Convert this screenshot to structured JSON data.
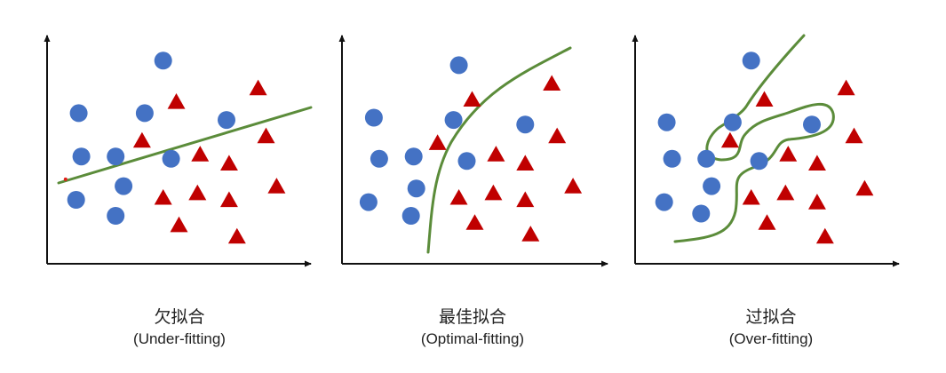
{
  "colors": {
    "circle": "#4472C4",
    "triangle": "#C00000",
    "boundary": "#5B8C3A",
    "axis": "#111111",
    "stray_dot": "#E0201A"
  },
  "panels": [
    {
      "id": "underfit",
      "caption_zh": "欠拟合",
      "caption_en": "(Under-fitting)",
      "fit": "linear",
      "circles": [
        [
          0.44,
          0.89
        ],
        [
          0.12,
          0.66
        ],
        [
          0.37,
          0.66
        ],
        [
          0.68,
          0.63
        ],
        [
          0.13,
          0.47
        ],
        [
          0.26,
          0.47
        ],
        [
          0.47,
          0.46
        ],
        [
          0.29,
          0.34
        ],
        [
          0.11,
          0.28
        ],
        [
          0.26,
          0.21
        ]
      ],
      "triangles": [
        [
          0.49,
          0.71
        ],
        [
          0.8,
          0.77
        ],
        [
          0.36,
          0.54
        ],
        [
          0.83,
          0.56
        ],
        [
          0.58,
          0.48
        ],
        [
          0.69,
          0.44
        ],
        [
          0.87,
          0.34
        ],
        [
          0.57,
          0.31
        ],
        [
          0.44,
          0.29
        ],
        [
          0.69,
          0.28
        ],
        [
          0.5,
          0.17
        ],
        [
          0.72,
          0.12
        ]
      ],
      "stray_dot": [
        0.07,
        0.37
      ]
    },
    {
      "id": "optimal",
      "caption_zh": "最佳拟合",
      "caption_en": "(Optimal-fitting)",
      "fit": "curve",
      "circles": [
        [
          0.44,
          0.87
        ],
        [
          0.12,
          0.64
        ],
        [
          0.42,
          0.63
        ],
        [
          0.69,
          0.61
        ],
        [
          0.14,
          0.46
        ],
        [
          0.27,
          0.47
        ],
        [
          0.47,
          0.45
        ],
        [
          0.28,
          0.33
        ],
        [
          0.1,
          0.27
        ],
        [
          0.26,
          0.21
        ]
      ],
      "triangles": [
        [
          0.49,
          0.72
        ],
        [
          0.79,
          0.79
        ],
        [
          0.36,
          0.53
        ],
        [
          0.81,
          0.56
        ],
        [
          0.58,
          0.48
        ],
        [
          0.69,
          0.44
        ],
        [
          0.87,
          0.34
        ],
        [
          0.57,
          0.31
        ],
        [
          0.44,
          0.29
        ],
        [
          0.69,
          0.28
        ],
        [
          0.5,
          0.18
        ],
        [
          0.71,
          0.13
        ]
      ]
    },
    {
      "id": "overfit",
      "caption_zh": "过拟合",
      "caption_en": "(Over-fitting)",
      "fit": "wiggly",
      "circles": [
        [
          0.44,
          0.89
        ],
        [
          0.12,
          0.62
        ],
        [
          0.37,
          0.62
        ],
        [
          0.67,
          0.61
        ],
        [
          0.14,
          0.46
        ],
        [
          0.27,
          0.46
        ],
        [
          0.47,
          0.45
        ],
        [
          0.29,
          0.34
        ],
        [
          0.11,
          0.27
        ],
        [
          0.25,
          0.22
        ]
      ],
      "triangles": [
        [
          0.49,
          0.72
        ],
        [
          0.8,
          0.77
        ],
        [
          0.36,
          0.54
        ],
        [
          0.83,
          0.56
        ],
        [
          0.58,
          0.48
        ],
        [
          0.69,
          0.44
        ],
        [
          0.87,
          0.33
        ],
        [
          0.57,
          0.31
        ],
        [
          0.44,
          0.29
        ],
        [
          0.69,
          0.27
        ],
        [
          0.5,
          0.18
        ],
        [
          0.72,
          0.12
        ]
      ]
    }
  ]
}
